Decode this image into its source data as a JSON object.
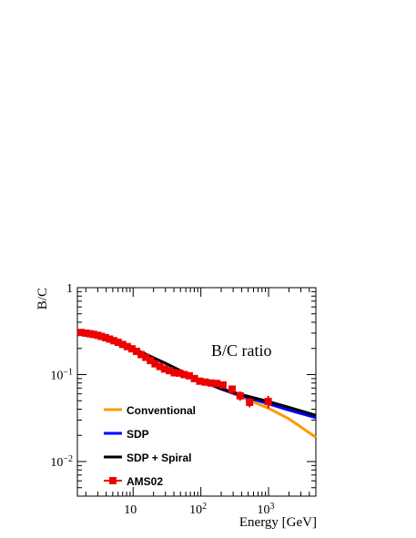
{
  "chart_data": {
    "type": "line",
    "title": "B/C ratio",
    "xlabel": "Energy [GeV]",
    "ylabel": "B/C",
    "xscale": "log",
    "yscale": "log",
    "xlim": [
      1.5,
      5000
    ],
    "ylim": [
      0.004,
      1
    ],
    "grid": false,
    "legend_position": "bottom-left",
    "x_tick_labels": [
      {
        "value": 10,
        "base": "10",
        "exp": ""
      },
      {
        "value": 100,
        "base": "10",
        "exp": "2"
      },
      {
        "value": 1000,
        "base": "10",
        "exp": "3"
      }
    ],
    "y_tick_labels": [
      {
        "value": 1,
        "base": "1",
        "exp": ""
      },
      {
        "value": 0.1,
        "base": "10",
        "exp": "−1"
      },
      {
        "value": 0.01,
        "base": "10",
        "exp": "−2"
      }
    ],
    "series": [
      {
        "name": "Conventional",
        "color": "#ff9900",
        "style": "line",
        "x": [
          1.5,
          3,
          10,
          30,
          100,
          200,
          400,
          1000,
          2000,
          5000
        ],
        "y": [
          0.3,
          0.27,
          0.2,
          0.135,
          0.085,
          0.068,
          0.055,
          0.041,
          0.031,
          0.019
        ]
      },
      {
        "name": "SDP",
        "color": "#0000ff",
        "style": "line",
        "x": [
          1.5,
          3,
          10,
          30,
          100,
          200,
          400,
          1000,
          2000,
          5000
        ],
        "y": [
          0.3,
          0.27,
          0.2,
          0.135,
          0.085,
          0.068,
          0.057,
          0.046,
          0.039,
          0.032
        ]
      },
      {
        "name": "SDP + Spiral",
        "color": "#000000",
        "style": "line",
        "x": [
          1.5,
          3,
          10,
          30,
          100,
          200,
          400,
          1000,
          2000,
          5000
        ],
        "y": [
          0.3,
          0.27,
          0.2,
          0.135,
          0.085,
          0.069,
          0.059,
          0.049,
          0.042,
          0.034
        ]
      },
      {
        "name": "AMS02",
        "color": "#ee0000",
        "style": "markers",
        "x": [
          1.7,
          2.0,
          2.3,
          2.6,
          3.0,
          3.4,
          3.9,
          4.5,
          5.2,
          6.0,
          7.0,
          8.2,
          9.6,
          11.2,
          13.1,
          15.4,
          18.0,
          21.1,
          24.8,
          29.1,
          34.3,
          40.5,
          47.9,
          56.8,
          67.5,
          80.5,
          96.5,
          116,
          141,
          172,
          212,
          290,
          380,
          525,
          990
        ],
        "y": [
          0.305,
          0.3,
          0.295,
          0.29,
          0.283,
          0.275,
          0.266,
          0.256,
          0.245,
          0.235,
          0.222,
          0.21,
          0.198,
          0.185,
          0.17,
          0.158,
          0.145,
          0.133,
          0.124,
          0.116,
          0.111,
          0.105,
          0.104,
          0.1,
          0.097,
          0.09,
          0.084,
          0.082,
          0.08,
          0.079,
          0.076,
          0.068,
          0.057,
          0.048,
          0.049
        ],
        "yerr": [
          0.008,
          0.008,
          0.008,
          0.007,
          0.007,
          0.007,
          0.007,
          0.006,
          0.006,
          0.006,
          0.006,
          0.006,
          0.005,
          0.005,
          0.005,
          0.005,
          0.004,
          0.004,
          0.004,
          0.004,
          0.004,
          0.004,
          0.004,
          0.004,
          0.004,
          0.004,
          0.004,
          0.004,
          0.004,
          0.004,
          0.005,
          0.007,
          0.007,
          0.006,
          0.008
        ]
      }
    ]
  }
}
